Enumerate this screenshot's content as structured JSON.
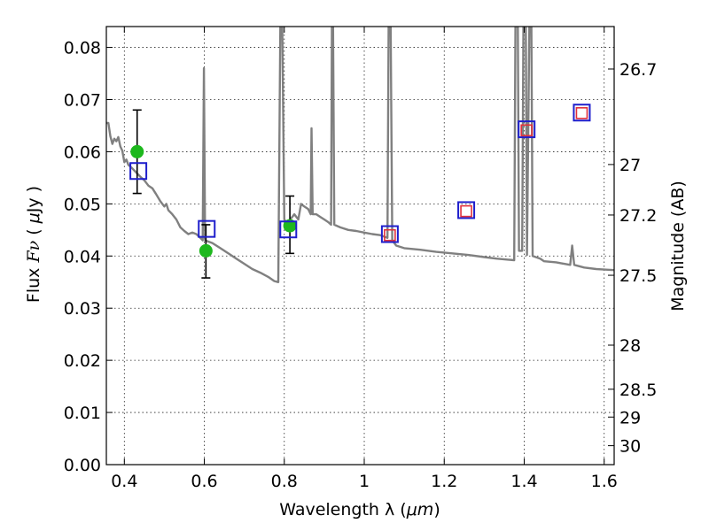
{
  "chart_data": {
    "type": "scatter",
    "xlabel_prefix": "Wavelength  λ (",
    "xlabel_unit": "μm",
    "xlabel_suffix": ")",
    "ylabel_prefix": "Flux  ",
    "ylabel_symbol": "Fν",
    "ylabel_unit_open": "(  ",
    "ylabel_unit_mu": "μ",
    "ylabel_unit_rest": "Jy )",
    "ylabel_right": "Magnitude (AB)",
    "xlim": [
      0.355,
      1.625
    ],
    "ylim": [
      0.0,
      0.084
    ],
    "grid": true,
    "x_ticks": [
      {
        "value": 0.4,
        "label": "0.4"
      },
      {
        "value": 0.6,
        "label": "0.6"
      },
      {
        "value": 0.8,
        "label": "0.8"
      },
      {
        "value": 1.0,
        "label": "1"
      },
      {
        "value": 1.2,
        "label": "1.2"
      },
      {
        "value": 1.4,
        "label": "1.4"
      },
      {
        "value": 1.6,
        "label": "1.6"
      }
    ],
    "y_ticks": [
      {
        "value": 0.0,
        "label": "0.00"
      },
      {
        "value": 0.01,
        "label": "0.01"
      },
      {
        "value": 0.02,
        "label": "0.02"
      },
      {
        "value": 0.03,
        "label": "0.03"
      },
      {
        "value": 0.04,
        "label": "0.04"
      },
      {
        "value": 0.05,
        "label": "0.05"
      },
      {
        "value": 0.06,
        "label": "0.06"
      },
      {
        "value": 0.07,
        "label": "0.07"
      },
      {
        "value": 0.08,
        "label": "0.08"
      }
    ],
    "mag_ticks": [
      {
        "mag": 26.7,
        "label": "26.7"
      },
      {
        "mag": 27.0,
        "label": "27"
      },
      {
        "mag": 27.2,
        "label": "27.2"
      },
      {
        "mag": 27.5,
        "label": "27.5"
      },
      {
        "mag": 28.0,
        "label": "28"
      },
      {
        "mag": 28.5,
        "label": "28.5"
      },
      {
        "mag": 29.0,
        "label": "29"
      },
      {
        "mag": 30.0,
        "label": "30"
      }
    ],
    "series": [
      {
        "name": "model-spectrum",
        "style": "line",
        "color": "#808080",
        "points": [
          [
            0.355,
            0.0655
          ],
          [
            0.36,
            0.0655
          ],
          [
            0.365,
            0.063
          ],
          [
            0.37,
            0.0615
          ],
          [
            0.375,
            0.0625
          ],
          [
            0.38,
            0.062
          ],
          [
            0.385,
            0.0628
          ],
          [
            0.39,
            0.061
          ],
          [
            0.395,
            0.0602
          ],
          [
            0.4,
            0.058
          ],
          [
            0.405,
            0.0585
          ],
          [
            0.41,
            0.0575
          ],
          [
            0.42,
            0.0568
          ],
          [
            0.43,
            0.056
          ],
          [
            0.44,
            0.0552
          ],
          [
            0.45,
            0.0545
          ],
          [
            0.46,
            0.0535
          ],
          [
            0.47,
            0.053
          ],
          [
            0.48,
            0.0518
          ],
          [
            0.49,
            0.0505
          ],
          [
            0.5,
            0.0495
          ],
          [
            0.505,
            0.05
          ],
          [
            0.51,
            0.0488
          ],
          [
            0.52,
            0.048
          ],
          [
            0.53,
            0.047
          ],
          [
            0.54,
            0.0455
          ],
          [
            0.55,
            0.0448
          ],
          [
            0.56,
            0.0442
          ],
          [
            0.57,
            0.0445
          ],
          [
            0.58,
            0.0442
          ],
          [
            0.59,
            0.0435
          ],
          [
            0.596,
            0.043
          ],
          [
            0.599,
            0.076
          ],
          [
            0.602,
            0.043
          ],
          [
            0.62,
            0.0425
          ],
          [
            0.64,
            0.0415
          ],
          [
            0.66,
            0.0405
          ],
          [
            0.68,
            0.0395
          ],
          [
            0.7,
            0.0385
          ],
          [
            0.72,
            0.0375
          ],
          [
            0.74,
            0.0368
          ],
          [
            0.76,
            0.036
          ],
          [
            0.775,
            0.0352
          ],
          [
            0.785,
            0.035
          ],
          [
            0.79,
            0.084
          ],
          [
            0.795,
            0.084
          ],
          [
            0.8,
            0.047
          ],
          [
            0.805,
            0.0465
          ],
          [
            0.815,
            0.047
          ],
          [
            0.825,
            0.048
          ],
          [
            0.835,
            0.047
          ],
          [
            0.842,
            0.05
          ],
          [
            0.85,
            0.0495
          ],
          [
            0.86,
            0.049
          ],
          [
            0.866,
            0.048
          ],
          [
            0.868,
            0.0645
          ],
          [
            0.871,
            0.048
          ],
          [
            0.88,
            0.048
          ],
          [
            0.89,
            0.0475
          ],
          [
            0.9,
            0.047
          ],
          [
            0.91,
            0.0465
          ],
          [
            0.917,
            0.046
          ],
          [
            0.919,
            0.084
          ],
          [
            0.922,
            0.084
          ],
          [
            0.925,
            0.046
          ],
          [
            0.94,
            0.0455
          ],
          [
            0.96,
            0.045
          ],
          [
            0.98,
            0.0448
          ],
          [
            1.0,
            0.0445
          ],
          [
            1.02,
            0.0442
          ],
          [
            1.04,
            0.044
          ],
          [
            1.058,
            0.0435
          ],
          [
            1.061,
            0.084
          ],
          [
            1.066,
            0.084
          ],
          [
            1.07,
            0.043
          ],
          [
            1.08,
            0.042
          ],
          [
            1.1,
            0.0415
          ],
          [
            1.14,
            0.0412
          ],
          [
            1.18,
            0.0408
          ],
          [
            1.22,
            0.0405
          ],
          [
            1.26,
            0.0402
          ],
          [
            1.3,
            0.0398
          ],
          [
            1.33,
            0.0395
          ],
          [
            1.36,
            0.0393
          ],
          [
            1.375,
            0.0392
          ],
          [
            1.378,
            0.084
          ],
          [
            1.384,
            0.084
          ],
          [
            1.387,
            0.041
          ],
          [
            1.395,
            0.041
          ],
          [
            1.398,
            0.084
          ],
          [
            1.404,
            0.084
          ],
          [
            1.407,
            0.0402
          ],
          [
            1.413,
            0.084
          ],
          [
            1.418,
            0.084
          ],
          [
            1.421,
            0.04
          ],
          [
            1.44,
            0.0395
          ],
          [
            1.45,
            0.039
          ],
          [
            1.48,
            0.0388
          ],
          [
            1.5,
            0.0385
          ],
          [
            1.515,
            0.0383
          ],
          [
            1.52,
            0.042
          ],
          [
            1.525,
            0.0383
          ],
          [
            1.55,
            0.0378
          ],
          [
            1.58,
            0.0375
          ],
          [
            1.6,
            0.0374
          ],
          [
            1.625,
            0.0373
          ]
        ]
      },
      {
        "name": "observed-photometry",
        "style": "circle-errorbar",
        "color": "#1db81d",
        "points": [
          {
            "x": 0.432,
            "y": 0.06,
            "err_low": 0.052,
            "err_high": 0.068
          },
          {
            "x": 0.604,
            "y": 0.041,
            "err_low": 0.0358,
            "err_high": 0.046
          },
          {
            "x": 0.814,
            "y": 0.0458,
            "err_low": 0.0405,
            "err_high": 0.0515
          }
        ]
      },
      {
        "name": "model-synthetic-photometry",
        "style": "square-open",
        "color": "#1f1fcc",
        "points": [
          {
            "x": 0.435,
            "y": 0.0563
          },
          {
            "x": 0.606,
            "y": 0.0452
          },
          {
            "x": 0.81,
            "y": 0.0451
          },
          {
            "x": 1.064,
            "y": 0.0442
          },
          {
            "x": 1.255,
            "y": 0.0488
          },
          {
            "x": 1.406,
            "y": 0.0643
          },
          {
            "x": 1.544,
            "y": 0.0675
          }
        ]
      },
      {
        "name": "predicted-photometry",
        "style": "square-open",
        "color": "#e0303c",
        "points": [
          {
            "x": 1.064,
            "y": 0.044
          },
          {
            "x": 1.255,
            "y": 0.0486
          },
          {
            "x": 1.406,
            "y": 0.0641
          },
          {
            "x": 1.544,
            "y": 0.0674
          }
        ]
      }
    ]
  }
}
